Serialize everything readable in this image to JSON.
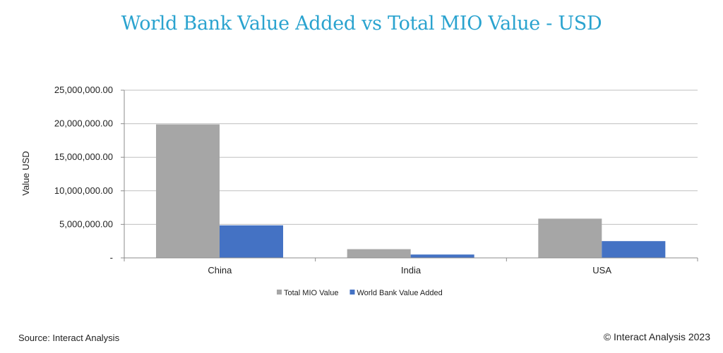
{
  "chart_data": {
    "type": "bar",
    "title": "World Bank Value Added vs Total MIO Value - USD",
    "ylabel": "Value USD",
    "xlabel": "",
    "categories": [
      "China",
      "India",
      "USA"
    ],
    "series": [
      {
        "name": "Total MIO Value",
        "color": "#a6a6a6",
        "values": [
          19900000,
          1300000,
          5850000
        ]
      },
      {
        "name": "World Bank Value Added",
        "color": "#4472c4",
        "values": [
          4850000,
          500000,
          2500000
        ]
      }
    ],
    "ylim": [
      0,
      25000000
    ],
    "yticks": [
      0,
      5000000,
      10000000,
      15000000,
      20000000,
      25000000
    ],
    "ytick_labels": [
      "-",
      "5,000,000.00",
      "10,000,000.00",
      "15,000,000.00",
      "20,000,000.00",
      "25,000,000.00"
    ],
    "grid": true,
    "legend_position": "bottom"
  },
  "footer": {
    "source": "Source: Interact Analysis",
    "copyright": "© Interact Analysis 2023"
  }
}
